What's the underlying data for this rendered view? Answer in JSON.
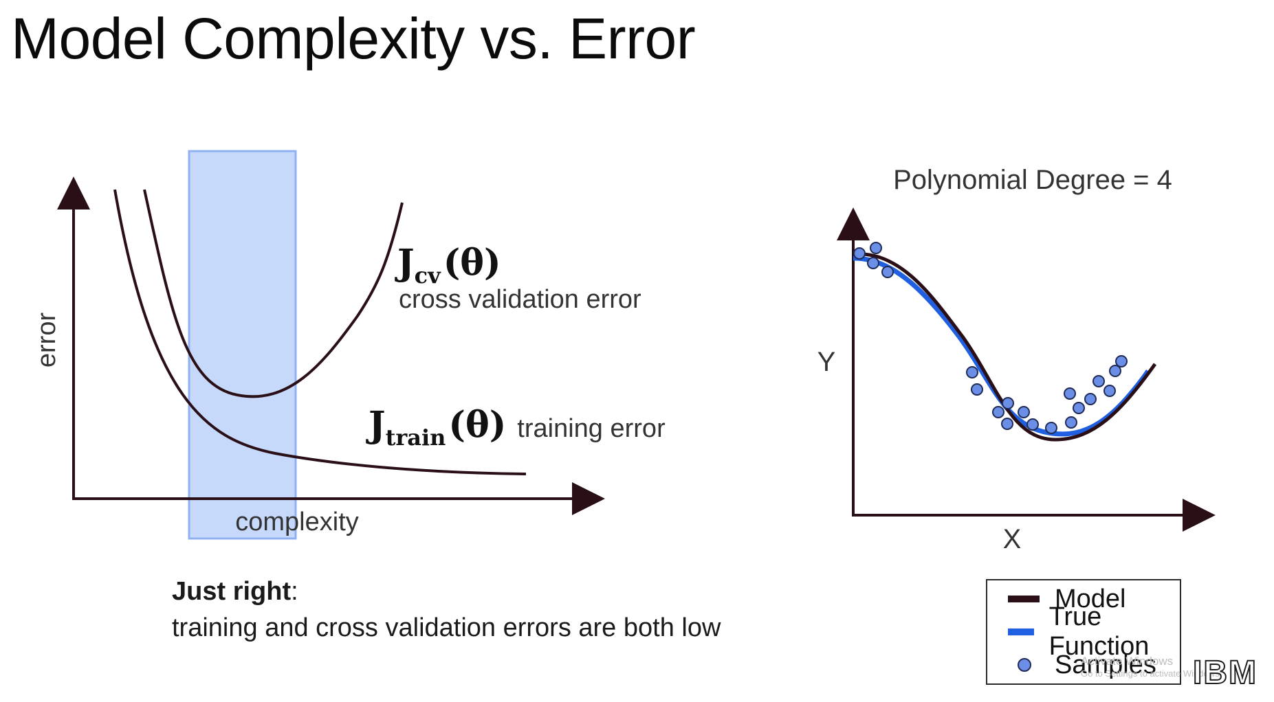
{
  "slide": {
    "title": "Model Complexity vs. Error"
  },
  "left_diagram": {
    "y_axis_label": "error",
    "x_axis_label": "complexity",
    "cv_curve": {
      "symbol_main": "J",
      "symbol_sub": "cv",
      "symbol_arg": "(θ)",
      "description": "cross validation error"
    },
    "train_curve": {
      "symbol_main": "J",
      "symbol_sub": "train",
      "symbol_arg": "(θ)",
      "description": "training error"
    },
    "highlight_color": "#c6d9fb",
    "highlight_border": "#8fb1f1"
  },
  "caption": {
    "heading": "Just right",
    "heading_suffix": ":",
    "text": "training and cross validation errors are both low"
  },
  "right_plot": {
    "title": "Polynomial Degree = 4",
    "x_label": "X",
    "y_label": "Y",
    "colors": {
      "model": "#2a0f17",
      "true_function": "#1f5fe0",
      "samples_fill": "#6b8fe6",
      "samples_edge": "#1f2a55"
    }
  },
  "legend": {
    "items": [
      {
        "label": "Model",
        "type": "line",
        "color": "#2a0f17"
      },
      {
        "label": "True Function",
        "type": "line",
        "color": "#1f5fe0"
      },
      {
        "label": "Samples",
        "type": "marker",
        "color": "#6b8fe6"
      }
    ]
  },
  "watermark": {
    "line1": "Activate Windows",
    "line2": "Go to Settings to activate Windows."
  },
  "logo": {
    "text": "IBM"
  }
}
